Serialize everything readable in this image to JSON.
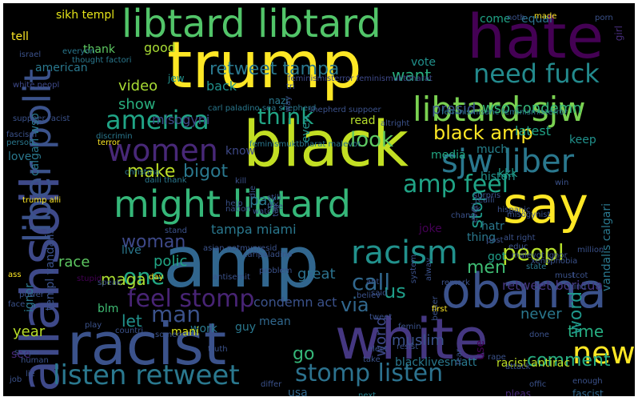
{
  "words": [
    {
      "t": "trump",
      "c": "#fde725"
    },
    {
      "t": "black",
      "c": "#c2df23"
    },
    {
      "t": "amp",
      "c": "#31668e"
    },
    {
      "t": "white",
      "c": "#453781"
    },
    {
      "t": "racist",
      "c": "#3b528b"
    },
    {
      "t": "obama",
      "c": "#3b528b"
    },
    {
      "t": "hate",
      "c": "#440154"
    },
    {
      "t": "libtard libtard",
      "c": "#52c569"
    },
    {
      "t": "might libtard",
      "c": "#35b779"
    },
    {
      "t": "say",
      "c": "#fde725"
    },
    {
      "t": "allahsoil",
      "c": "#3e4989"
    },
    {
      "t": "liber polit",
      "c": "#3b528b"
    },
    {
      "t": "libtard sjw",
      "c": "#7ad151"
    },
    {
      "t": "sjw liber",
      "c": "#2a788e"
    },
    {
      "t": "women",
      "c": "#482878"
    },
    {
      "t": "racism",
      "c": "#21918c"
    },
    {
      "t": "america",
      "c": "#20a486"
    },
    {
      "t": "amp feel",
      "c": "#20a486"
    },
    {
      "t": "listen retweet",
      "c": "#2a788e"
    },
    {
      "t": "feel stomp",
      "c": "#482475"
    },
    {
      "t": "new",
      "c": "#fde725"
    },
    {
      "t": "call",
      "c": "#31688e"
    },
    {
      "t": "need fuck",
      "c": "#238a8d"
    },
    {
      "t": "stomp listen",
      "c": "#2c728e"
    },
    {
      "t": "think",
      "c": "#21a585"
    },
    {
      "t": "peopl",
      "c": "#b5de2b"
    },
    {
      "t": "man",
      "c": "#3b528b"
    },
    {
      "t": "black amp",
      "c": "#fde725"
    },
    {
      "t": "look",
      "c": "#5ec962"
    },
    {
      "t": "comment",
      "c": "#27ad81"
    },
    {
      "t": "woman",
      "c": "#3e4989"
    },
    {
      "t": "bigot",
      "c": "#2a788e"
    },
    {
      "t": "make",
      "c": "#bddf26"
    },
    {
      "t": "one",
      "c": "#22a884"
    },
    {
      "t": "via",
      "c": "#31688e"
    },
    {
      "t": "us",
      "c": "#1f9e89"
    },
    {
      "t": "go",
      "c": "#35b779"
    },
    {
      "t": "time",
      "c": "#26ad81"
    },
    {
      "t": "word",
      "c": "#1f988b"
    },
    {
      "t": "men",
      "c": "#3fbc73"
    },
    {
      "t": "retweet tampa",
      "c": "#2a788e"
    },
    {
      "t": "stop",
      "c": "#1f9a8a"
    },
    {
      "t": "want",
      "c": "#29af7f"
    },
    {
      "t": "presid",
      "c": "#3b528b"
    },
    {
      "t": "wso condemn",
      "c": "#35b779"
    },
    {
      "t": "great",
      "c": "#2c728e"
    },
    {
      "t": "year",
      "c": "#b8de29"
    },
    {
      "t": "pay",
      "c": "#2a788e"
    },
    {
      "t": "tampa miami",
      "c": "#2a788e"
    },
    {
      "t": "let",
      "c": "#21918c"
    },
    {
      "t": "polic",
      "c": "#21a685"
    },
    {
      "t": "race",
      "c": "#5ec962"
    },
    {
      "t": "maga",
      "c": "#aadc32"
    },
    {
      "t": "video",
      "c": "#a8db34"
    },
    {
      "t": "show",
      "c": "#29af7f"
    },
    {
      "t": "misogyni",
      "c": "#3e4989"
    },
    {
      "t": "muslim",
      "c": "#3b528b"
    },
    {
      "t": "never",
      "c": "#2a788e"
    },
    {
      "t": "world",
      "c": "#3e4989"
    },
    {
      "t": "condemn act",
      "c": "#3b528b"
    },
    {
      "t": "retweet boricua",
      "c": "#453781"
    },
    {
      "t": "latest",
      "c": "#20a386"
    },
    {
      "t": "keep",
      "c": "#21918c"
    },
    {
      "t": "much",
      "c": "#26828e"
    },
    {
      "t": "media",
      "c": "#22a884"
    },
    {
      "t": "read",
      "c": "#b5de2b"
    },
    {
      "t": "back",
      "c": "#21918c"
    },
    {
      "t": "good",
      "c": "#a8db34"
    },
    {
      "t": "thank",
      "c": "#5ec962"
    },
    {
      "t": "sikh templ",
      "c": "#e5e419"
    },
    {
      "t": "tell",
      "c": "#fde725"
    },
    {
      "t": "american",
      "c": "#2a788e"
    },
    {
      "t": "vote",
      "c": "#21918c"
    },
    {
      "t": "come",
      "c": "#20a386"
    },
    {
      "t": "equal",
      "c": "#2c728e"
    },
    {
      "t": "girl",
      "c": "#472d7b"
    },
    {
      "t": "calgari wso",
      "c": "#2a788e"
    },
    {
      "t": "templ vandalis",
      "c": "#3b528b"
    },
    {
      "t": "vandalis calgari",
      "c": "#2a788e"
    },
    {
      "t": "love",
      "c": "#2a788e"
    },
    {
      "t": "ignor",
      "c": "#2a788e"
    },
    {
      "t": "see",
      "c": "#482878"
    },
    {
      "t": "blm",
      "c": "#3fbc73"
    },
    {
      "t": "work",
      "c": "#2a788e"
    },
    {
      "t": "guy",
      "c": "#2a788e"
    },
    {
      "t": "mani",
      "c": "#d8e219"
    },
    {
      "t": "mean",
      "c": "#31688e"
    },
    {
      "t": "hatr",
      "c": "#2a788e"
    },
    {
      "t": "histori",
      "c": "#21918c"
    },
    {
      "t": "kkk",
      "c": "#1f9e89"
    },
    {
      "t": "joke",
      "c": "#440154"
    },
    {
      "t": "thing",
      "c": "#2a788e"
    },
    {
      "t": "got",
      "c": "#1f9e89"
    },
    {
      "t": "even",
      "c": "#21918c"
    },
    {
      "t": "know",
      "c": "#3e4989"
    },
    {
      "t": "live",
      "c": "#2a788e"
    },
    {
      "t": "nazi",
      "c": "#2a788e"
    },
    {
      "t": "jew",
      "c": "#21918c"
    },
    {
      "t": "usa",
      "c": "#31688e"
    },
    {
      "t": "blacklivesmatt",
      "c": "#2a788e"
    },
    {
      "t": "use",
      "c": "#440154"
    },
    {
      "t": "racist antirac",
      "c": "#bddf26"
    },
    {
      "t": "pleas",
      "c": "#482878"
    },
    {
      "t": "fascist",
      "c": "#31688e"
    },
    {
      "t": "next",
      "c": "#26828e"
    },
    {
      "t": "feminismisterror feminismuktbharat",
      "c": "#3e4989"
    },
    {
      "t": "carl paladino sea shepherd",
      "c": "#2a788e"
    },
    {
      "t": "shepherd suppoer",
      "c": "#3b528b"
    },
    {
      "t": "discrimin",
      "c": "#2a788e"
    },
    {
      "t": "feminismisanc feminismisterror",
      "c": "#2a788e"
    },
    {
      "t": "feminismuktbharat malevot",
      "c": "#2a788e"
    },
    {
      "t": "altright",
      "c": "#3b528b"
    },
    {
      "t": "state",
      "c": "#2a788e"
    },
    {
      "t": "suppoer racist",
      "c": "#3b528b"
    },
    {
      "t": "white peopl",
      "c": "#3e4989"
    },
    {
      "t": "thought factori",
      "c": "#2a788e"
    },
    {
      "t": "everyon",
      "c": "#2a788e"
    },
    {
      "t": "israel",
      "c": "#3b528b"
    },
    {
      "t": "fascism",
      "c": "#3b528b"
    },
    {
      "t": "person",
      "c": "#2a788e"
    },
    {
      "t": "terror",
      "c": "#fde725"
    },
    {
      "t": "christma",
      "c": "#2a788e"
    },
    {
      "t": "daili thank",
      "c": "#2a788e"
    },
    {
      "t": "trump alli",
      "c": "#fde725"
    },
    {
      "t": "asian notmypresid",
      "c": "#3b528b"
    },
    {
      "t": "antisemit",
      "c": "#3b528b"
    },
    {
      "t": "carlpaladino",
      "c": "#3b528b"
    },
    {
      "t": "problem",
      "c": "#3b528b"
    },
    {
      "t": "stand",
      "c": "#3b528b"
    },
    {
      "t": "still",
      "c": "#3b528b"
    },
    {
      "t": "help",
      "c": "#3b528b"
    },
    {
      "t": "nation",
      "c": "#3b528b"
    },
    {
      "t": "watch",
      "c": "#3b528b"
    },
    {
      "t": "free",
      "c": "#3b528b"
    },
    {
      "t": "talk",
      "c": "#3b528b"
    },
    {
      "t": "day",
      "c": "#fde725"
    },
    {
      "t": "speak",
      "c": "#3b528b"
    },
    {
      "t": "stupid",
      "c": "#440154"
    },
    {
      "t": "ass",
      "c": "#fde725"
    },
    {
      "t": "face",
      "c": "#3b528b"
    },
    {
      "t": "power",
      "c": "#3b528b"
    },
    {
      "t": "alway",
      "c": "#3b528b"
    },
    {
      "t": "anti",
      "c": "#3b528b"
    },
    {
      "t": "said",
      "c": "#3b528b"
    },
    {
      "t": "believ",
      "c": "#3b528b"
    },
    {
      "t": "better",
      "c": "#3b528b"
    },
    {
      "t": "first",
      "c": "#fde725"
    },
    {
      "t": "remark",
      "c": "#3b528b"
    },
    {
      "t": "tweet",
      "c": "#3b528b"
    },
    {
      "t": "femin",
      "c": "#3b528b"
    },
    {
      "t": "system",
      "c": "#3b528b"
    },
    {
      "t": "resist",
      "c": "#3b528b"
    },
    {
      "t": "elect",
      "c": "#3b528b"
    },
    {
      "t": "take",
      "c": "#3b528b"
    },
    {
      "t": "truth",
      "c": "#3b528b"
    },
    {
      "t": "countri",
      "c": "#3b528b"
    },
    {
      "t": "suppo",
      "c": "#3b528b"
    },
    {
      "t": "someon",
      "c": "#3b528b"
    },
    {
      "t": "play",
      "c": "#3b528b"
    },
    {
      "t": "differ",
      "c": "#3b528b"
    },
    {
      "t": "lie",
      "c": "#3b528b"
    },
    {
      "t": "job",
      "c": "#3b528b"
    },
    {
      "t": "human",
      "c": "#3b528b"
    },
    {
      "t": "offic",
      "c": "#3b528b"
    },
    {
      "t": "attack",
      "c": "#3b528b"
    },
    {
      "t": "enough",
      "c": "#3b528b"
    },
    {
      "t": "rape",
      "c": "#3b528b"
    },
    {
      "t": "done",
      "c": "#3b528b"
    },
    {
      "t": "fear",
      "c": "#3b528b"
    },
    {
      "t": "alt right",
      "c": "#3b528b"
    },
    {
      "t": "malevot ignor",
      "c": "#3b528b"
    },
    {
      "t": "xenophobia",
      "c": "#3b528b"
    },
    {
      "t": "educ",
      "c": "#3b528b"
    },
    {
      "t": "post",
      "c": "#3b528b"
    },
    {
      "t": "must",
      "c": "#3b528b"
    },
    {
      "t": "kind",
      "c": "#3b528b"
    },
    {
      "t": "tcot",
      "c": "#3b528b"
    },
    {
      "t": "million",
      "c": "#3b528b"
    },
    {
      "t": "misogynist",
      "c": "#3b528b"
    },
    {
      "t": "hispanic",
      "c": "#3b528b"
    },
    {
      "t": "win",
      "c": "#3b528b"
    },
    {
      "t": "everi",
      "c": "#3b528b"
    },
    {
      "t": "uk",
      "c": "#3b528b"
    },
    {
      "t": "chang",
      "c": "#3b528b"
    },
    {
      "t": "realli",
      "c": "#3b528b"
    },
    {
      "t": "surpris",
      "c": "#3b528b"
    },
    {
      "t": "noth",
      "c": "#3b528b"
    },
    {
      "t": "made",
      "c": "#fde725"
    },
    {
      "t": "porn",
      "c": "#3b528b"
    },
    {
      "t": "kill",
      "c": "#3b528b"
    },
    {
      "t": "die",
      "c": "#3b528b"
    },
    {
      "t": "way",
      "c": "#3b528b"
    },
    {
      "t": "tri",
      "c": "#3b528b"
    }
  ]
}
